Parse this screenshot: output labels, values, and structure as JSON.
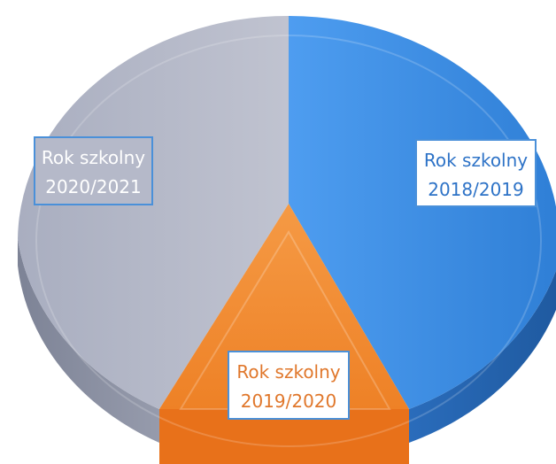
{
  "chart_data": {
    "type": "pie",
    "style": "3d",
    "legend": "none",
    "slices": [
      {
        "label_line1": "Rok szkolny",
        "label_line2": "2018/2019",
        "value": 44,
        "color": "#3f8fe0",
        "text_color": "#2e73c7",
        "box_fill": "#ffffff",
        "box_stroke": "#4a90d9"
      },
      {
        "label_line1": "Rok szkolny",
        "label_line2": "2019/2020",
        "value": 12,
        "color": "#f28a2e",
        "text_color": "#e0772b",
        "box_fill": "#ffffff",
        "box_stroke": "#4a90d9"
      },
      {
        "label_line1": "Rok szkolny",
        "label_line2": "2020/2021",
        "value": 44,
        "color": "#b5b9c9",
        "text_color": "#ffffff",
        "box_fill": "#b5b9c9",
        "box_stroke": "#4a90d9"
      }
    ]
  }
}
